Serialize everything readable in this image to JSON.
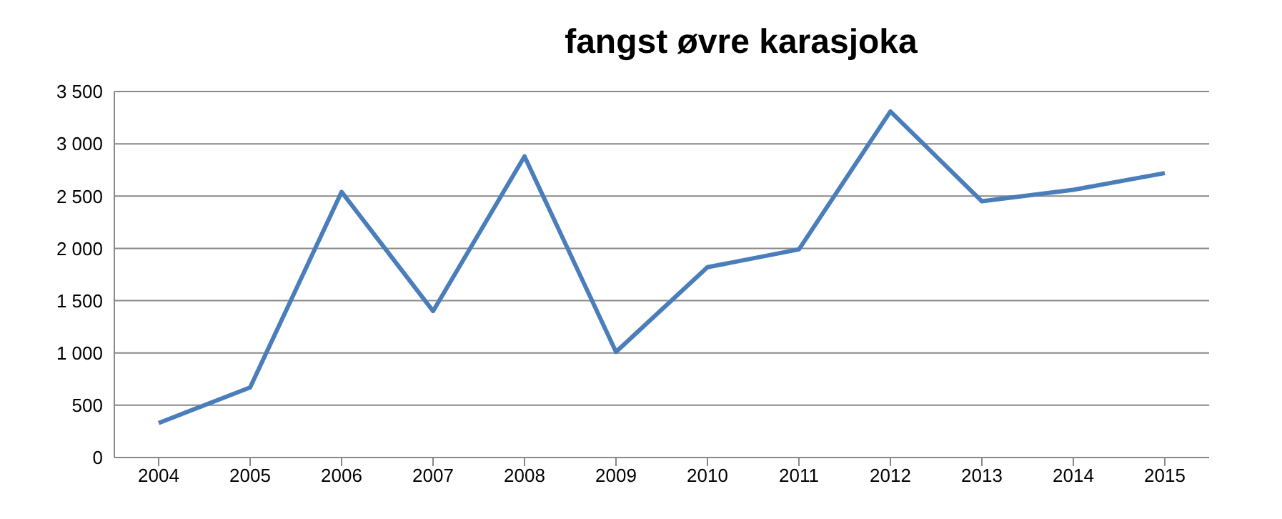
{
  "chart_data": {
    "type": "line",
    "title": "fangst øvre karasjoka",
    "categories": [
      "2004",
      "2005",
      "2006",
      "2007",
      "2008",
      "2009",
      "2010",
      "2011",
      "2012",
      "2013",
      "2014",
      "2015"
    ],
    "series": [
      {
        "color": "#4a7ebb",
        "values": [
          330,
          670,
          2540,
          1400,
          2880,
          1010,
          1820,
          1990,
          3310,
          2450,
          2560,
          2720
        ]
      }
    ],
    "ylim": [
      0,
      3500
    ],
    "yticks": [
      0,
      500,
      {
        "value": 1000,
        "label": "1 000"
      },
      {
        "value": 1500,
        "label": "1 500"
      },
      {
        "value": 2000,
        "label": "2 000"
      },
      {
        "value": 2500,
        "label": "2 500"
      },
      {
        "value": 3000,
        "label": "3 000"
      },
      {
        "value": 3500,
        "label": "3 500"
      }
    ],
    "grid": "y",
    "legend": false,
    "marker": "none",
    "line_style": "solid"
  }
}
